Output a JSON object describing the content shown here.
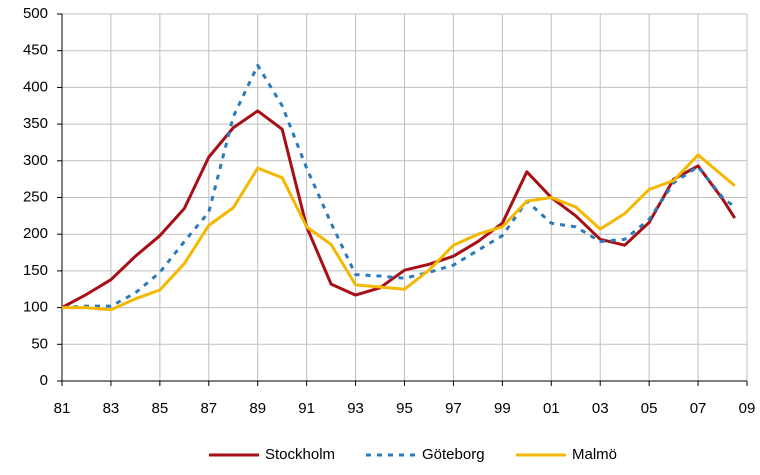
{
  "chart_data": {
    "type": "line",
    "x": [
      1981,
      1982,
      1983,
      1984,
      1985,
      1986,
      1987,
      1988,
      1989,
      1990,
      1991,
      1992,
      1993,
      1994,
      1995,
      1996,
      1997,
      1998,
      1999,
      2000,
      2001,
      2002,
      2003,
      2004,
      2005,
      2006,
      2007,
      2008,
      2008.5
    ],
    "series": [
      {
        "name": "Stockholm",
        "color": "#a50f15",
        "dash": "solid",
        "values": [
          100,
          118,
          138,
          170,
          198,
          235,
          305,
          345,
          368,
          343,
          210,
          132,
          117,
          127,
          151,
          159,
          170,
          190,
          215,
          285,
          250,
          225,
          193,
          185,
          216,
          275,
          293,
          248,
          222
        ]
      },
      {
        "name": "Göteborg",
        "color": "#2b7bba",
        "dash": "dashed",
        "values": [
          100,
          102,
          102,
          120,
          148,
          190,
          230,
          360,
          430,
          375,
          290,
          215,
          145,
          143,
          140,
          148,
          158,
          178,
          198,
          245,
          215,
          210,
          190,
          193,
          220,
          270,
          292,
          250,
          237
        ]
      },
      {
        "name": "Malmö",
        "color": "#f5b800",
        "dash": "solid",
        "values": [
          100,
          100,
          97,
          112,
          124,
          160,
          212,
          236,
          290,
          277,
          210,
          186,
          131,
          128,
          125,
          151,
          185,
          200,
          210,
          245,
          250,
          237,
          207,
          228,
          261,
          273,
          308,
          280,
          266
        ]
      }
    ],
    "xlim": [
      1981,
      2009
    ],
    "xticks": [
      {
        "value": 1981,
        "label": "81"
      },
      {
        "value": 1983,
        "label": "83"
      },
      {
        "value": 1985,
        "label": "85"
      },
      {
        "value": 1987,
        "label": "87"
      },
      {
        "value": 1989,
        "label": "89"
      },
      {
        "value": 1991,
        "label": "91"
      },
      {
        "value": 1993,
        "label": "93"
      },
      {
        "value": 1995,
        "label": "95"
      },
      {
        "value": 1997,
        "label": "97"
      },
      {
        "value": 1999,
        "label": "99"
      },
      {
        "value": 2001,
        "label": "01"
      },
      {
        "value": 2003,
        "label": "03"
      },
      {
        "value": 2005,
        "label": "05"
      },
      {
        "value": 2007,
        "label": "07"
      },
      {
        "value": 2009,
        "label": "09"
      }
    ],
    "ylim": [
      0,
      500
    ],
    "yticks": [
      0,
      50,
      100,
      150,
      200,
      250,
      300,
      350,
      400,
      450,
      500
    ],
    "grid": true,
    "legend": "bottom"
  }
}
